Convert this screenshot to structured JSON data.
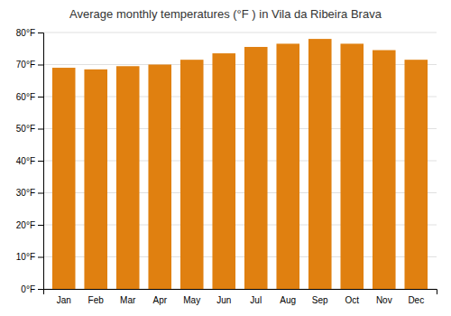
{
  "chart_data": {
    "type": "bar",
    "title": "Average monthly temperatures (°F ) in Vila da Ribeira Brava",
    "categories": [
      "Jan",
      "Feb",
      "Mar",
      "Apr",
      "May",
      "Jun",
      "Jul",
      "Aug",
      "Sep",
      "Oct",
      "Nov",
      "Dec"
    ],
    "values": [
      69.0,
      68.5,
      69.5,
      70.0,
      71.5,
      73.5,
      75.5,
      76.5,
      78.0,
      76.5,
      74.5,
      71.5
    ],
    "color": "#E08010",
    "ylim": [
      0,
      80
    ],
    "yticks": [
      {
        "value": 0,
        "label": "0°F"
      },
      {
        "value": 10,
        "label": "10°F"
      },
      {
        "value": 20,
        "label": "20°F"
      },
      {
        "value": 30,
        "label": "30°F"
      },
      {
        "value": 40,
        "label": "40°F"
      },
      {
        "value": 50,
        "label": "50°F"
      },
      {
        "value": 60,
        "label": "60°F"
      },
      {
        "value": 70,
        "label": "70°F"
      },
      {
        "value": 80,
        "label": "80°F"
      }
    ],
    "grid": true
  }
}
